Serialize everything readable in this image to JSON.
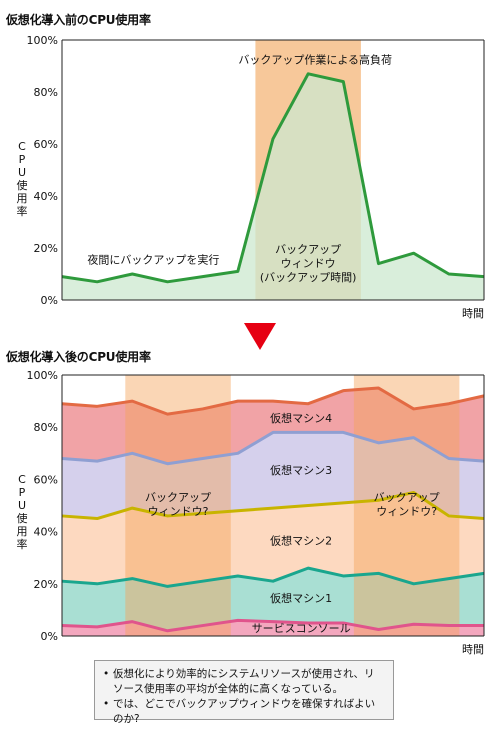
{
  "charts": {
    "before": {
      "title": "仮想化導入前のCPU使用率"
    },
    "after": {
      "title": "仮想化導入後のCPU使用率"
    }
  },
  "notes": [
    "仮想化により効率的にシステムリソースが使用され、リソース使用率の平均が全体的に高くなっている。",
    "では、どこでバックアップウィンドウを確保すればよいのか?"
  ],
  "colors": {
    "backup_window": "#f7c89a",
    "single_line": "#2e9a3c",
    "single_fill": "#cce8cf",
    "service_console": "#e0548c",
    "vm1": "#1aa68e",
    "vm2": "#c8b400",
    "vm3": "#8f9fd2",
    "vm4": "#e36a43"
  },
  "chart_data": [
    {
      "type": "area",
      "title": "仮想化導入前のCPU使用率",
      "xlabel": "時間",
      "ylabel": "CPU使用率",
      "ylim": [
        0,
        100
      ],
      "yticks": [
        "0%",
        "20%",
        "40%",
        "60%",
        "80%",
        "100%"
      ],
      "x": [
        0,
        1,
        2,
        3,
        4,
        5,
        6,
        7,
        8,
        9,
        10,
        11,
        12
      ],
      "series": [
        {
          "values": [
            9,
            7,
            10,
            7,
            9,
            11,
            62,
            87,
            84,
            14,
            18,
            10,
            9
          ]
        }
      ],
      "backup_window": {
        "x_range": [
          5.5,
          8.5
        ],
        "label": [
          "バックアップ",
          "ウィンドウ",
          "(バックアップ時間)"
        ]
      },
      "annotations": [
        {
          "text": "バックアップ作業による高負荷",
          "x": 7.2,
          "y": 91
        },
        {
          "text": "夜間にバックアップを実行",
          "x": 2.6,
          "y": 14
        }
      ],
      "grid": false
    },
    {
      "type": "area",
      "title": "仮想化導入後のCPU使用率",
      "xlabel": "時間",
      "ylabel": "CPU使用率",
      "ylim": [
        0,
        100
      ],
      "yticks": [
        "0%",
        "20%",
        "40%",
        "60%",
        "80%",
        "100%"
      ],
      "x": [
        0,
        1,
        2,
        3,
        4,
        5,
        6,
        7,
        8,
        9,
        10,
        11,
        12
      ],
      "series": [
        {
          "name": "サービスコンソール",
          "values": [
            4,
            3.5,
            5.5,
            2,
            4,
            6,
            5.5,
            5,
            5,
            2.5,
            4.5,
            4,
            4
          ]
        },
        {
          "name": "仮想マシン1",
          "values": [
            21,
            20,
            22,
            19,
            21,
            23,
            21,
            26,
            23,
            24,
            20,
            22,
            24
          ]
        },
        {
          "name": "仮想マシン2",
          "values": [
            46,
            45,
            49,
            46,
            47,
            48,
            49,
            50,
            51,
            52,
            55,
            46,
            45
          ]
        },
        {
          "name": "仮想マシン3",
          "values": [
            68,
            67,
            70,
            66,
            68,
            70,
            78,
            78,
            78,
            74,
            76,
            68,
            67
          ]
        },
        {
          "name": "仮想マシン4",
          "values": [
            89,
            88,
            90,
            85,
            87,
            90,
            90,
            89,
            94,
            95,
            87,
            89,
            92
          ]
        }
      ],
      "backup_windows": [
        {
          "x_range": [
            1.8,
            4.8
          ],
          "label": [
            "バックアップ",
            "ウィンドウ?"
          ]
        },
        {
          "x_range": [
            8.3,
            11.3
          ],
          "label": [
            "バックアップ",
            "ウィンドウ?"
          ]
        }
      ],
      "grid": false
    }
  ]
}
